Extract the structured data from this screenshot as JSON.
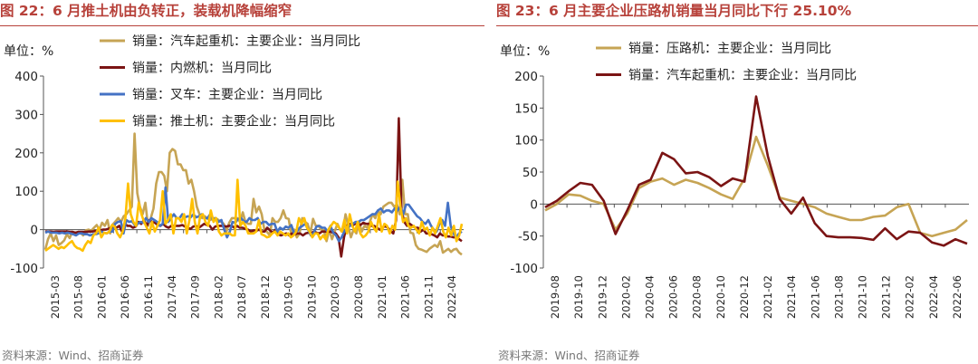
{
  "panels": [
    {
      "title": "图 22：6 月推土机由负转正，装载机降幅缩窄",
      "unit": "单位：%",
      "source": "资料来源：Wind、招商证券"
    },
    {
      "title": "图 23：6 月主要企业压路机销量当月同比下行 25.10%",
      "unit": "单位：%",
      "source": "资料来源：Wind、招商证券"
    }
  ],
  "chart_data": [
    {
      "type": "line",
      "title": "图 22：6 月推土机由负转正，装载机降幅缩窄",
      "ylabel": "单位：%",
      "ylim": [
        -100,
        400
      ],
      "yticks": [
        -100,
        0,
        100,
        200,
        300,
        400
      ],
      "x_tick_labels": [
        "2015-03",
        "2015-08",
        "2016-01",
        "2016-06",
        "2016-11",
        "2017-04",
        "2017-09",
        "2018-02",
        "2018-07",
        "2018-12",
        "2019-05",
        "2019-10",
        "2020-03",
        "2020-08",
        "2021-01",
        "2021-06",
        "2021-11",
        "2022-04"
      ],
      "x_start": "2015-03",
      "x_end": "2022-06",
      "legend": "top-left",
      "grid": false,
      "series": [
        {
          "name": "销量：汽车起重机：主要企业：当月同比",
          "color": "#c6a454",
          "values": [
            -52,
            -25,
            -10,
            -30,
            -15,
            -40,
            -35,
            -28,
            -12,
            -22,
            -6,
            -10,
            -8,
            -8,
            -15,
            -2,
            0,
            -3,
            5,
            12,
            0,
            18,
            10,
            25,
            -10,
            14,
            22,
            30,
            20,
            35,
            40,
            50,
            60,
            250,
            95,
            60,
            40,
            70,
            10,
            30,
            55,
            120,
            150,
            150,
            140,
            100,
            200,
            210,
            205,
            170,
            170,
            155,
            155,
            120,
            130,
            100,
            60,
            40,
            30,
            35,
            28,
            25,
            30,
            30,
            25,
            20,
            15,
            -5,
            18,
            30,
            30,
            30,
            20,
            45,
            20,
            15,
            15,
            80,
            45,
            60,
            40,
            0,
            -6,
            -15,
            30,
            20,
            20,
            30,
            50,
            30,
            28,
            -15,
            0,
            -20,
            -10,
            30,
            20,
            15,
            -10,
            28,
            10,
            10,
            0,
            -2,
            -30,
            0,
            -25,
            -5,
            15,
            0,
            -5,
            40,
            10,
            -20,
            0,
            -10,
            20,
            -5,
            10,
            5,
            20,
            40,
            30,
            50,
            40,
            60,
            65,
            70,
            70,
            60,
            65,
            40,
            130,
            40,
            40,
            -8,
            -10,
            -40,
            -50,
            -52,
            -55,
            -58,
            -50,
            -45,
            -40,
            -45,
            -30,
            -60,
            -55,
            -50,
            -58,
            -52,
            -50,
            -60,
            -65
          ]
        },
        {
          "name": "销量：内燃机：当月同比",
          "color": "#7b1414",
          "values": [
            -5,
            -5,
            -5,
            -6,
            -5,
            -5,
            -5,
            -5,
            -5,
            -6,
            -6,
            -8,
            -6,
            -6,
            -6,
            -6,
            -5,
            -5,
            -4,
            -3,
            -2,
            0,
            0,
            2,
            5,
            8,
            5,
            10,
            -5,
            15,
            10,
            10,
            5,
            8,
            20,
            15,
            25,
            10,
            25,
            20,
            18,
            12,
            10,
            15,
            8,
            5,
            10,
            10,
            10,
            10,
            12,
            8,
            5,
            2,
            8,
            10,
            5,
            10,
            15,
            12,
            10,
            0,
            8,
            10,
            10,
            10,
            8,
            10,
            10,
            5,
            10,
            5,
            5,
            2,
            0,
            -5,
            -2,
            -3,
            0,
            -5,
            -5,
            5,
            -2,
            -8,
            0,
            -12,
            -15,
            -12,
            -10,
            -15,
            -10,
            -12,
            -10,
            -10,
            -15,
            -10,
            -8,
            -10,
            -5,
            -8,
            -10,
            -5,
            -5,
            -6,
            -5,
            -8,
            -10,
            -20,
            -70,
            -20,
            10,
            15,
            10,
            15,
            15,
            12,
            18,
            15,
            15,
            10,
            10,
            5,
            0,
            5,
            10,
            5,
            -3,
            -10,
            25,
            290,
            50,
            20,
            10,
            15,
            10,
            5,
            5,
            -5,
            0,
            -10,
            -10,
            -12,
            -15,
            -20,
            -10,
            -15,
            -15,
            -18,
            -18,
            -20,
            -20,
            -25,
            -30
          ]
        },
        {
          "name": "销量：叉车：主要企业：当月同比",
          "color": "#4472c4",
          "values": [
            -8,
            -5,
            -8,
            -8,
            -8,
            -10,
            -8,
            -10,
            -8,
            -10,
            -12,
            -15,
            -10,
            -10,
            -12,
            -12,
            -15,
            -12,
            -12,
            -10,
            -5,
            -8,
            -10,
            -5,
            -5,
            15,
            20,
            22,
            -10,
            25,
            20,
            22,
            12,
            15,
            20,
            18,
            30,
            20,
            30,
            25,
            20,
            10,
            15,
            110,
            20,
            30,
            40,
            30,
            30,
            40,
            32,
            35,
            32,
            40,
            32,
            35,
            40,
            30,
            30,
            40,
            25,
            30,
            20,
            25,
            0,
            -20,
            -5,
            20,
            18,
            28,
            30,
            22,
            20,
            30,
            25,
            25,
            30,
            15,
            20,
            20,
            12,
            15,
            15,
            -5,
            5,
            0,
            8,
            5,
            12,
            -10,
            -5,
            5,
            10,
            15,
            0,
            -15,
            -8,
            8,
            10,
            5,
            5,
            -5,
            10,
            -8,
            -15,
            -30,
            -20,
            -5,
            5,
            10,
            15,
            20,
            20,
            25,
            25,
            30,
            35,
            40,
            40,
            50,
            55,
            45,
            50,
            50,
            45,
            55,
            50,
            60,
            40,
            65,
            65,
            55,
            45,
            35,
            30,
            20,
            15,
            25,
            10,
            0,
            -5,
            15,
            25,
            10,
            70,
            10,
            -10,
            -20,
            -10,
            -5
          ]
        },
        {
          "name": "销量：推土机：主要企业：当月同比",
          "color": "#ffc000",
          "values": [
            -55,
            -50,
            -45,
            -40,
            -45,
            -50,
            -45,
            -48,
            -42,
            -35,
            -30,
            -42,
            -48,
            -50,
            -55,
            -40,
            -30,
            -35,
            -15,
            -10,
            5,
            -20,
            -8,
            -10,
            -5,
            12,
            8,
            -10,
            -20,
            -5,
            30,
            120,
            40,
            20,
            10,
            70,
            40,
            20,
            5,
            -10,
            20,
            -5,
            10,
            25,
            100,
            15,
            25,
            40,
            -10,
            30,
            30,
            20,
            40,
            -10,
            25,
            80,
            20,
            -10,
            35,
            40,
            20,
            10,
            50,
            20,
            30,
            -5,
            -15,
            -10,
            -10,
            -10,
            -15,
            -15,
            130,
            10,
            20,
            10,
            -10,
            -10,
            -10,
            -5,
            25,
            -12,
            -15,
            -20,
            -18,
            -10,
            -5,
            -15,
            -5,
            -10,
            -15,
            -10,
            -20,
            -15,
            -5,
            30,
            15,
            30,
            5,
            -5,
            -20,
            -10,
            -10,
            -25,
            -15,
            -25,
            0,
            10,
            20,
            15,
            5,
            -5,
            25,
            -10,
            40,
            10,
            -5,
            20,
            -10,
            -20,
            -15,
            -5,
            20,
            5,
            -5,
            40,
            -5,
            15,
            10,
            -10,
            10,
            0,
            125,
            60,
            20,
            30,
            10,
            5,
            10,
            0,
            -10,
            20,
            0,
            5,
            -15,
            5,
            -10,
            10,
            30,
            -5,
            -20,
            5,
            -15,
            10,
            -30,
            -15,
            15
          ]
        }
      ]
    },
    {
      "type": "line",
      "title": "图 23：6 月主要企业压路机销量当月同比下行 25.10%",
      "ylabel": "单位：%",
      "ylim": [
        -100,
        200
      ],
      "yticks": [
        -100,
        -50,
        0,
        50,
        100,
        150,
        200
      ],
      "x_tick_labels": [
        "2019-08",
        "2019-10",
        "2019-12",
        "2020-02",
        "2020-04",
        "2020-06",
        "2020-08",
        "2020-10",
        "2020-12",
        "2021-02",
        "2021-04",
        "2021-06",
        "2021-08",
        "2021-10",
        "2021-12",
        "2022-02",
        "2022-04",
        "2022-06"
      ],
      "x_start": "2019-08",
      "x_end": "2022-06",
      "legend": "top-center",
      "grid": false,
      "series": [
        {
          "name": "销量：压路机：主要企业：当月同比",
          "color": "#c6a454",
          "values": [
            -10,
            0,
            15,
            13,
            5,
            0,
            -40,
            -15,
            25,
            35,
            40,
            30,
            38,
            33,
            25,
            15,
            8,
            40,
            105,
            60,
            10,
            5,
            0,
            -5,
            -15,
            -20,
            -25,
            -25,
            -20,
            -18,
            -5,
            0,
            -45,
            -50,
            -45,
            -40,
            -25
          ]
        },
        {
          "name": "销量：汽车起重机：主要企业：当月同比",
          "color": "#7b1414",
          "values": [
            -5,
            5,
            20,
            33,
            30,
            5,
            -47,
            -10,
            30,
            38,
            80,
            70,
            48,
            50,
            42,
            28,
            40,
            35,
            168,
            75,
            8,
            -15,
            10,
            -30,
            -50,
            -52,
            -52,
            -53,
            -56,
            -38,
            -55,
            -43,
            -45,
            -60,
            -65,
            -55,
            -62
          ]
        }
      ]
    }
  ]
}
